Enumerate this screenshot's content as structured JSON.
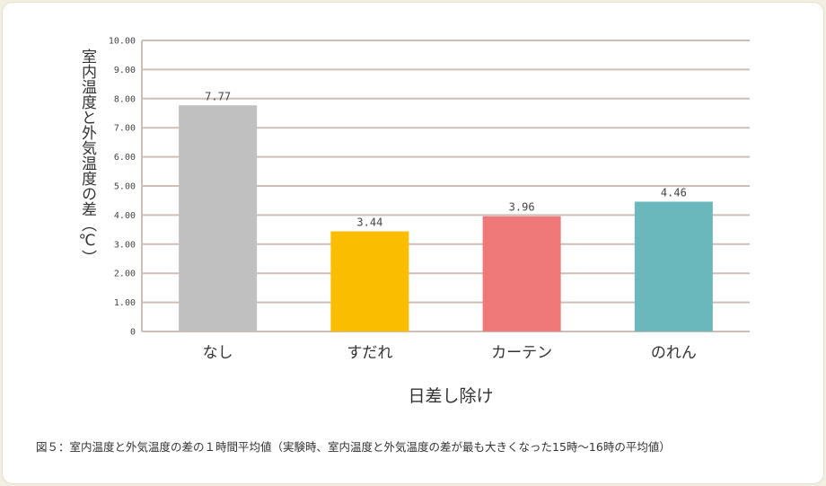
{
  "chart_data": {
    "type": "bar",
    "categories": [
      "なし",
      "すだれ",
      "カーテン",
      "のれん"
    ],
    "values": [
      7.77,
      3.44,
      3.96,
      4.46
    ],
    "value_labels": [
      "7.77",
      "3.44",
      "3.96",
      "4.46"
    ],
    "colors": [
      "#c0c0c0",
      "#fbbd00",
      "#ef7878",
      "#6ab8bc"
    ],
    "ylabel": "室内温度と外気温度の差（℃）",
    "xlabel": "日差し除け",
    "ylim": [
      0,
      10
    ],
    "yticks": [
      "0",
      "1.00",
      "2.00",
      "3.00",
      "4.00",
      "5.00",
      "6.00",
      "7.00",
      "8.00",
      "9.00",
      "10.00"
    ],
    "grid": true
  },
  "caption": "図５：室内温度と外気温度の差の１時間平均値（実験時、室内温度と外気温度の差が最も大きくなった15時〜16時の平均値）"
}
